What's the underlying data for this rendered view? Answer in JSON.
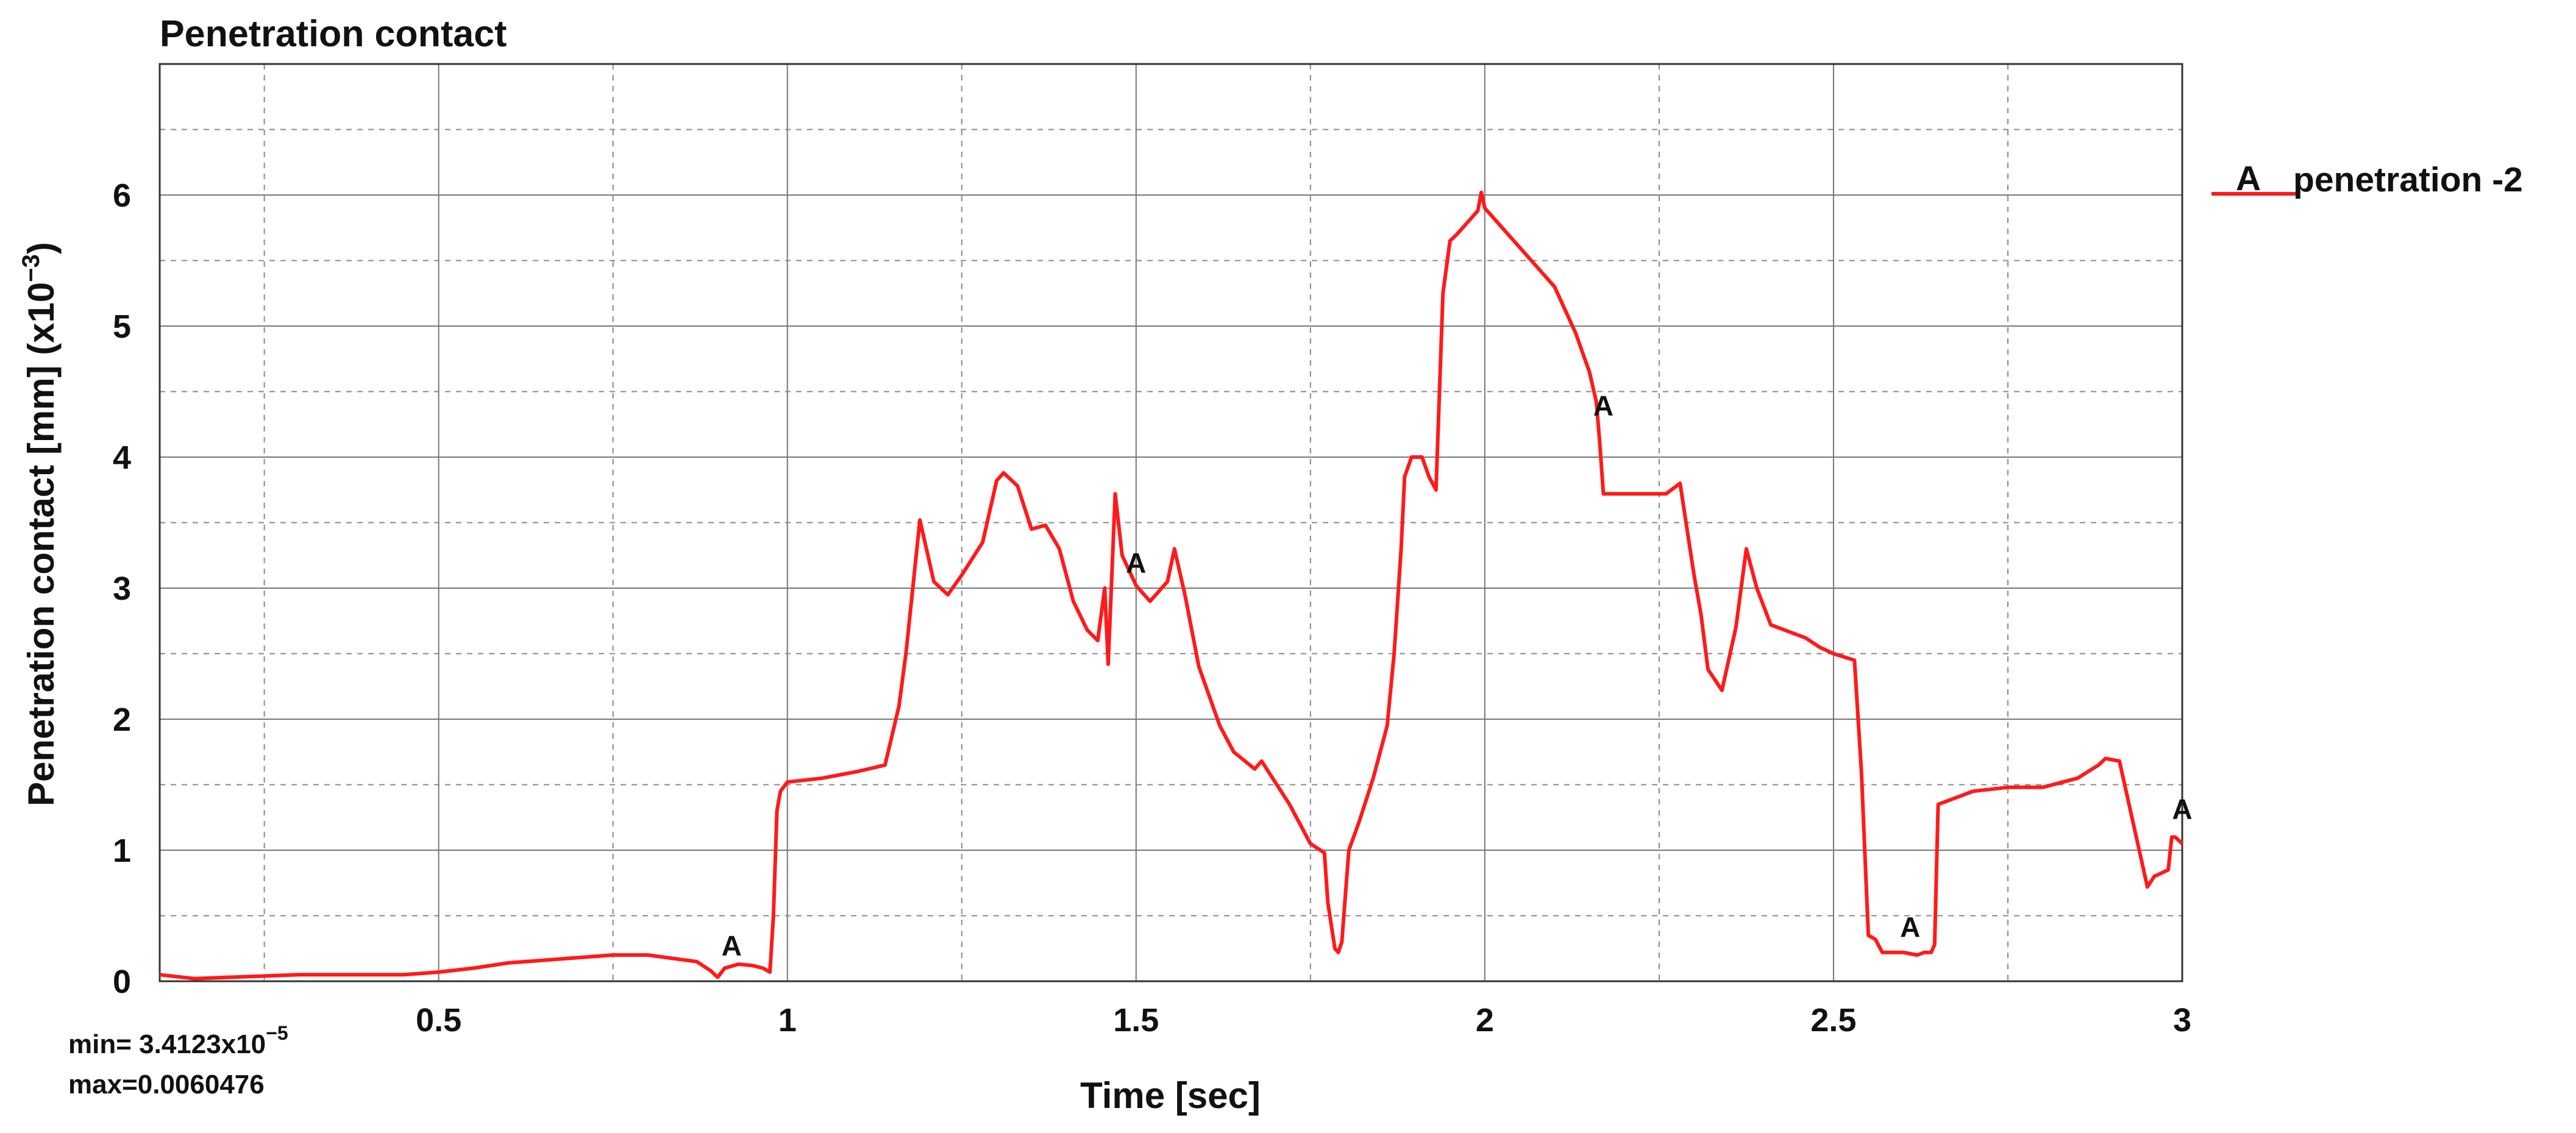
{
  "chart_data": {
    "type": "line",
    "title": "Penetration contact",
    "xlabel": "Time [sec]",
    "ylabel": "Penetration contact [mm] (x10",
    "ylabel_exp": "−3",
    "ylabel_close": ")",
    "xlim": [
      0.1,
      3.0
    ],
    "ylim": [
      0,
      7
    ],
    "xticks": [
      0.5,
      1,
      1.5,
      2,
      2.5,
      3
    ],
    "xtick_labels": [
      "0.5",
      "1",
      "1.5",
      "2",
      "2.5",
      "3"
    ],
    "yticks": [
      0,
      1,
      2,
      3,
      4,
      5,
      6
    ],
    "ytick_labels": [
      "0",
      "1",
      "2",
      "3",
      "4",
      "5",
      "6"
    ],
    "grid": true,
    "legend_position": "top-right",
    "color": "#ff1a1a",
    "series": [
      {
        "name": "penetration -2",
        "marker_label": "A",
        "markers": [
          [
            0.92,
            0.18
          ],
          [
            1.5,
            3.1
          ],
          [
            2.17,
            4.3
          ],
          [
            2.61,
            0.32
          ],
          [
            3.0,
            1.22
          ]
        ],
        "x": [
          0.1,
          0.15,
          0.2,
          0.3,
          0.45,
          0.5,
          0.55,
          0.6,
          0.7,
          0.75,
          0.8,
          0.87,
          0.89,
          0.9,
          0.91,
          0.93,
          0.95,
          0.965,
          0.975,
          0.98,
          0.985,
          0.99,
          1.0,
          1.05,
          1.1,
          1.14,
          1.16,
          1.17,
          1.19,
          1.21,
          1.23,
          1.25,
          1.28,
          1.3,
          1.31,
          1.33,
          1.35,
          1.37,
          1.39,
          1.41,
          1.43,
          1.445,
          1.455,
          1.46,
          1.47,
          1.48,
          1.5,
          1.52,
          1.545,
          1.555,
          1.57,
          1.59,
          1.62,
          1.64,
          1.67,
          1.68,
          1.72,
          1.75,
          1.77,
          1.775,
          1.785,
          1.79,
          1.795,
          1.805,
          1.82,
          1.84,
          1.86,
          1.87,
          1.88,
          1.885,
          1.895,
          1.91,
          1.92,
          1.93,
          1.94,
          1.95,
          1.96,
          1.99,
          1.995,
          2.0,
          2.05,
          2.1,
          2.13,
          2.15,
          2.16,
          2.165,
          2.17,
          2.2,
          2.26,
          2.28,
          2.3,
          2.31,
          2.32,
          2.34,
          2.36,
          2.375,
          2.39,
          2.41,
          2.46,
          2.48,
          2.5,
          2.53,
          2.54,
          2.55,
          2.56,
          2.57,
          2.6,
          2.62,
          2.63,
          2.64,
          2.645,
          2.65,
          2.7,
          2.75,
          2.8,
          2.85,
          2.88,
          2.89,
          2.91,
          2.95,
          2.96,
          2.98,
          2.985,
          2.99,
          3.0
        ],
        "y": [
          0.05,
          0.02,
          0.03,
          0.05,
          0.05,
          0.07,
          0.1,
          0.14,
          0.18,
          0.2,
          0.2,
          0.15,
          0.08,
          0.03,
          0.1,
          0.13,
          0.12,
          0.1,
          0.07,
          0.5,
          1.3,
          1.45,
          1.52,
          1.55,
          1.6,
          1.65,
          2.1,
          2.5,
          3.52,
          3.05,
          2.95,
          3.1,
          3.35,
          3.82,
          3.88,
          3.78,
          3.45,
          3.48,
          3.3,
          2.9,
          2.68,
          2.6,
          3.0,
          2.42,
          3.72,
          3.25,
          3.02,
          2.9,
          3.05,
          3.3,
          2.95,
          2.4,
          1.95,
          1.75,
          1.62,
          1.68,
          1.35,
          1.05,
          0.98,
          0.6,
          0.25,
          0.22,
          0.3,
          1.0,
          1.22,
          1.55,
          1.95,
          2.5,
          3.3,
          3.85,
          4.0,
          4.0,
          3.85,
          3.75,
          5.25,
          5.65,
          5.7,
          5.88,
          6.02,
          5.9,
          5.6,
          5.3,
          4.95,
          4.65,
          4.42,
          4.1,
          3.72,
          3.72,
          3.72,
          3.8,
          3.1,
          2.8,
          2.38,
          2.22,
          2.7,
          3.3,
          3.0,
          2.72,
          2.62,
          2.55,
          2.5,
          2.45,
          1.6,
          0.35,
          0.32,
          0.22,
          0.22,
          0.2,
          0.22,
          0.22,
          0.28,
          1.35,
          1.45,
          1.48,
          1.48,
          1.55,
          1.65,
          1.7,
          1.68,
          0.72,
          0.8,
          0.85,
          1.1,
          1.1,
          1.05
        ]
      }
    ],
    "stats": {
      "min_label": "min= 3.4123x10",
      "min_exp": "−5",
      "max_label": "max=0.0060476"
    }
  }
}
